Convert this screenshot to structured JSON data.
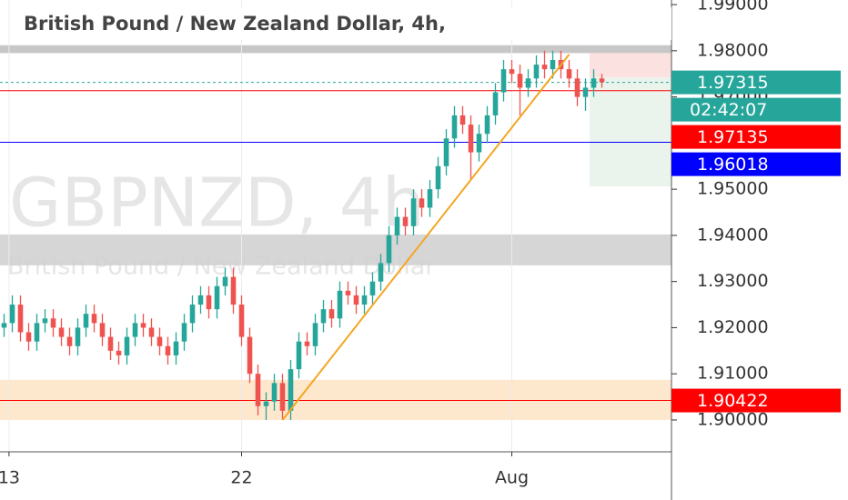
{
  "chart_data": {
    "type": "candlestick",
    "title": "British Pound / New Zealand Dollar, 4h,",
    "watermark": "GBPNZD, 4h",
    "watermark_subtitle": "British Pound / New Zealand Dollar",
    "up_color": "#26a69a",
    "down_color": "#ef5350",
    "open": [
      1.92,
      1.921,
      1.925,
      1.919,
      1.917,
      1.921,
      1.922,
      1.92,
      1.918,
      1.916,
      1.92,
      1.923,
      1.921,
      1.918,
      1.915,
      1.914,
      1.918,
      1.921,
      1.92,
      1.918,
      1.916,
      1.914,
      1.917,
      1.921,
      1.925,
      1.927,
      1.924,
      1.929,
      1.931,
      1.925,
      1.918,
      1.91,
      1.903,
      1.904,
      1.908,
      1.902,
      1.911,
      1.917,
      1.916,
      1.921,
      1.924,
      1.922,
      1.928,
      1.927,
      1.925,
      1.927,
      1.93,
      1.934,
      1.94,
      1.944,
      1.942,
      1.948,
      1.946,
      1.95,
      1.955,
      1.961,
      1.966,
      1.964,
      1.958,
      1.962,
      1.966,
      1.971,
      1.976,
      1.975,
      1.972,
      1.974,
      1.977,
      1.976,
      1.978,
      1.976,
      1.974,
      1.97,
      1.972,
      1.974
    ],
    "high": [
      1.923,
      1.927,
      1.927,
      1.921,
      1.923,
      1.924,
      1.924,
      1.922,
      1.92,
      1.922,
      1.925,
      1.925,
      1.923,
      1.92,
      1.917,
      1.92,
      1.923,
      1.923,
      1.922,
      1.92,
      1.918,
      1.919,
      1.923,
      1.927,
      1.929,
      1.929,
      1.931,
      1.933,
      1.933,
      1.927,
      1.92,
      1.912,
      1.906,
      1.91,
      1.91,
      1.913,
      1.919,
      1.919,
      1.923,
      1.926,
      1.926,
      1.93,
      1.93,
      1.929,
      1.929,
      1.932,
      1.936,
      1.942,
      1.946,
      1.946,
      1.95,
      1.95,
      1.952,
      1.957,
      1.963,
      1.968,
      1.968,
      1.966,
      1.964,
      1.968,
      1.973,
      1.978,
      1.978,
      1.977,
      1.976,
      1.979,
      1.98,
      1.98,
      1.98,
      1.978,
      1.976,
      1.974,
      1.976,
      1.975
    ],
    "low": [
      1.918,
      1.919,
      1.917,
      1.915,
      1.915,
      1.919,
      1.918,
      1.916,
      1.914,
      1.914,
      1.918,
      1.919,
      1.916,
      1.913,
      1.912,
      1.912,
      1.916,
      1.918,
      1.916,
      1.914,
      1.912,
      1.912,
      1.915,
      1.919,
      1.923,
      1.922,
      1.922,
      1.927,
      1.923,
      1.916,
      1.908,
      1.901,
      1.9,
      1.902,
      1.9,
      1.9,
      1.909,
      1.914,
      1.914,
      1.919,
      1.92,
      1.92,
      1.925,
      1.923,
      1.923,
      1.925,
      1.928,
      1.932,
      1.938,
      1.94,
      1.94,
      1.944,
      1.944,
      1.948,
      1.953,
      1.959,
      1.962,
      1.952,
      1.956,
      1.96,
      1.964,
      1.969,
      1.973,
      1.966,
      1.97,
      1.972,
      1.974,
      1.974,
      1.974,
      1.972,
      1.968,
      1.967,
      1.97,
      1.972
    ],
    "close": [
      1.921,
      1.925,
      1.919,
      1.917,
      1.921,
      1.922,
      1.92,
      1.918,
      1.916,
      1.92,
      1.923,
      1.921,
      1.918,
      1.915,
      1.914,
      1.918,
      1.921,
      1.92,
      1.918,
      1.916,
      1.914,
      1.917,
      1.921,
      1.925,
      1.927,
      1.924,
      1.929,
      1.931,
      1.925,
      1.918,
      1.91,
      1.903,
      1.904,
      1.908,
      1.902,
      1.911,
      1.917,
      1.916,
      1.921,
      1.924,
      1.922,
      1.928,
      1.927,
      1.925,
      1.927,
      1.93,
      1.934,
      1.94,
      1.944,
      1.942,
      1.948,
      1.946,
      1.95,
      1.955,
      1.961,
      1.966,
      1.964,
      1.958,
      1.962,
      1.966,
      1.971,
      1.976,
      1.975,
      1.972,
      1.974,
      1.977,
      1.976,
      1.978,
      1.976,
      1.974,
      1.97,
      1.972,
      1.974,
      1.9732
    ],
    "xlim": [
      -0.5,
      81.5
    ],
    "xticks": [
      {
        "value": 0.6,
        "label": "13"
      },
      {
        "value": 29,
        "label": "22"
      },
      {
        "value": 62,
        "label": "Aug"
      }
    ],
    "ylim": [
      1.8931,
      1.991
    ],
    "yticks": [
      {
        "value": 1.9,
        "label": "1.90000"
      },
      {
        "value": 1.91,
        "label": "1.91000"
      },
      {
        "value": 1.92,
        "label": "1.92000"
      },
      {
        "value": 1.93,
        "label": "1.93000"
      },
      {
        "value": 1.94,
        "label": "1.94000"
      },
      {
        "value": 1.95,
        "label": "1.95000"
      },
      {
        "value": 1.96,
        "label": "1.96000"
      },
      {
        "value": 1.97,
        "label": "1.97000"
      },
      {
        "value": 1.98,
        "label": "1.98000"
      },
      {
        "value": 1.99,
        "label": "1.99000"
      }
    ],
    "zones": [
      {
        "from": 1.9795,
        "to": 1.9812,
        "color": "#bdbdbd"
      },
      {
        "from": 1.9335,
        "to": 1.9402,
        "color": "#cfcfcf"
      },
      {
        "from": 1.9,
        "to": 1.9087,
        "color": "#fde3c4"
      }
    ],
    "price_lines": [
      {
        "value": 1.97315,
        "label": "1.97315",
        "color": "#26a69a",
        "dashed": true,
        "countdown": "02:42:07"
      },
      {
        "value": 1.97135,
        "label": "1.97135",
        "color": "#ff0000"
      },
      {
        "value": 1.96018,
        "label": "1.96018",
        "color": "#0000ff"
      },
      {
        "value": 1.90422,
        "label": "1.90422",
        "color": "#ff0000"
      }
    ],
    "trendline": {
      "x": [
        34,
        69
      ],
      "y": [
        1.9,
        1.9792
      ],
      "color": "#f5a623"
    },
    "position": {
      "x": 71.5,
      "stop": [
        1.9742,
        1.9795
      ],
      "target": [
        1.9506,
        1.9742
      ]
    }
  }
}
